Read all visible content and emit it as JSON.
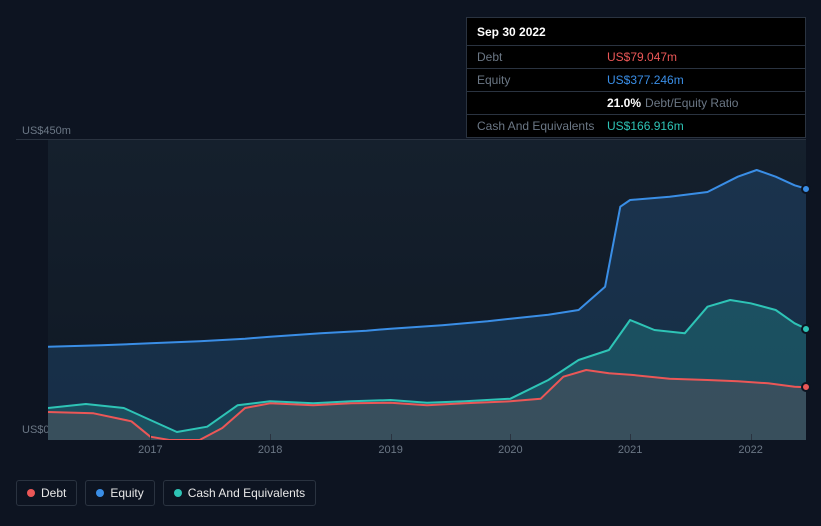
{
  "tooltip": {
    "date": "Sep 30 2022",
    "rows": [
      {
        "label": "Debt",
        "value": "US$79.047m",
        "cls": "debt"
      },
      {
        "label": "Equity",
        "value": "US$377.246m",
        "cls": "equity"
      },
      {
        "label": "",
        "value": "21.0%",
        "suffix": "Debt/Equity Ratio",
        "cls": "ratio-val"
      },
      {
        "label": "Cash And Equivalents",
        "value": "US$166.916m",
        "cls": "cash"
      }
    ]
  },
  "chart": {
    "type": "area",
    "background_gradient": [
      "#15202d",
      "#0f1824"
    ],
    "page_background": "#0d1421",
    "y_axis": {
      "min": 0,
      "max": 450,
      "labels": {
        "top": "US$450m",
        "bottom": "US$0"
      },
      "label_color": "#6b7785",
      "label_fontsize": 11
    },
    "x_axis": {
      "ticks": [
        {
          "label": "2017",
          "u": 0.135
        },
        {
          "label": "2018",
          "u": 0.293
        },
        {
          "label": "2019",
          "u": 0.452
        },
        {
          "label": "2020",
          "u": 0.61
        },
        {
          "label": "2021",
          "u": 0.768
        },
        {
          "label": "2022",
          "u": 0.927
        }
      ],
      "label_color": "#6b7785",
      "label_fontsize": 11
    },
    "series": [
      {
        "name": "Equity",
        "color": "#3a8ee6",
        "fill_opacity": 0.18,
        "line_width": 2,
        "points": [
          [
            0.0,
            140
          ],
          [
            0.07,
            142
          ],
          [
            0.135,
            145
          ],
          [
            0.2,
            148
          ],
          [
            0.26,
            152
          ],
          [
            0.293,
            155
          ],
          [
            0.36,
            160
          ],
          [
            0.42,
            164
          ],
          [
            0.452,
            167
          ],
          [
            0.52,
            172
          ],
          [
            0.58,
            178
          ],
          [
            0.61,
            182
          ],
          [
            0.66,
            188
          ],
          [
            0.7,
            195
          ],
          [
            0.735,
            230
          ],
          [
            0.755,
            350
          ],
          [
            0.768,
            360
          ],
          [
            0.82,
            365
          ],
          [
            0.87,
            372
          ],
          [
            0.91,
            395
          ],
          [
            0.935,
            405
          ],
          [
            0.96,
            395
          ],
          [
            0.985,
            382
          ],
          [
            1.0,
            377
          ]
        ]
      },
      {
        "name": "Cash And Equivalents",
        "color": "#2ec4b6",
        "fill_opacity": 0.22,
        "line_width": 2,
        "points": [
          [
            0.0,
            48
          ],
          [
            0.05,
            54
          ],
          [
            0.1,
            48
          ],
          [
            0.135,
            30
          ],
          [
            0.17,
            12
          ],
          [
            0.21,
            20
          ],
          [
            0.25,
            52
          ],
          [
            0.293,
            58
          ],
          [
            0.35,
            55
          ],
          [
            0.4,
            58
          ],
          [
            0.452,
            60
          ],
          [
            0.5,
            56
          ],
          [
            0.55,
            58
          ],
          [
            0.61,
            62
          ],
          [
            0.66,
            90
          ],
          [
            0.7,
            120
          ],
          [
            0.74,
            135
          ],
          [
            0.768,
            180
          ],
          [
            0.8,
            165
          ],
          [
            0.84,
            160
          ],
          [
            0.87,
            200
          ],
          [
            0.9,
            210
          ],
          [
            0.927,
            205
          ],
          [
            0.96,
            195
          ],
          [
            0.985,
            175
          ],
          [
            1.0,
            167
          ]
        ]
      },
      {
        "name": "Debt",
        "color": "#eb5757",
        "fill_opacity": 0.14,
        "line_width": 2,
        "points": [
          [
            0.0,
            42
          ],
          [
            0.06,
            40
          ],
          [
            0.11,
            28
          ],
          [
            0.135,
            5
          ],
          [
            0.16,
            0
          ],
          [
            0.2,
            0
          ],
          [
            0.23,
            18
          ],
          [
            0.26,
            48
          ],
          [
            0.293,
            55
          ],
          [
            0.35,
            52
          ],
          [
            0.4,
            55
          ],
          [
            0.452,
            56
          ],
          [
            0.5,
            52
          ],
          [
            0.55,
            55
          ],
          [
            0.61,
            58
          ],
          [
            0.65,
            62
          ],
          [
            0.68,
            95
          ],
          [
            0.71,
            105
          ],
          [
            0.74,
            100
          ],
          [
            0.768,
            98
          ],
          [
            0.82,
            92
          ],
          [
            0.87,
            90
          ],
          [
            0.91,
            88
          ],
          [
            0.95,
            85
          ],
          [
            0.985,
            80
          ],
          [
            1.0,
            79
          ]
        ]
      }
    ],
    "markers_at_u": 1.0,
    "legend": [
      {
        "label": "Debt",
        "color": "#eb5757"
      },
      {
        "label": "Equity",
        "color": "#3a8ee6"
      },
      {
        "label": "Cash And Equivalents",
        "color": "#2ec4b6"
      }
    ],
    "grid_color": "#2a3340"
  }
}
